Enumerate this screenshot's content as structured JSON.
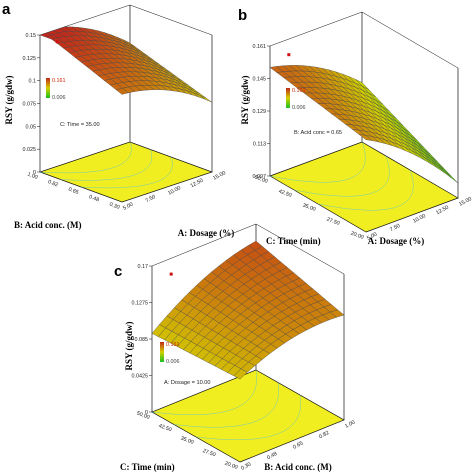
{
  "colors": {
    "surface_high": "#c0281a",
    "surface_mid": "#d4d000",
    "surface_low": "#18c020",
    "floor": "#f0ee20",
    "grid": "#444444",
    "box": "#111111",
    "legend_high": "#cc2200",
    "legend_low": "#444444",
    "contour": "#44bbee"
  },
  "chart_data": [
    {
      "type": "surface",
      "panel": "a",
      "zlabel": "RSY (g/gdw)",
      "xlabel": "A: Dosage (%)",
      "ylabel": "B: Acid conc. (M)",
      "xticks": [
        "5.00",
        "7.50",
        "10.00",
        "12.50",
        "15.00"
      ],
      "yticks": [
        "0.30",
        "0.48",
        "0.65",
        "0.82",
        "1.00"
      ],
      "zticks": [
        "0",
        "0.025",
        "0.05",
        "0.075",
        "0.1",
        "0.125",
        "0.15"
      ],
      "legend": {
        "high": "0.161",
        "low": "0.006"
      },
      "held_constant": "C: Time = 35.00",
      "xlim": [
        5,
        15
      ],
      "ylim": [
        0.3,
        1.0
      ],
      "zlim": [
        0,
        0.15
      ],
      "surface_corners": {
        "x5_ymax": 0.15,
        "x15_ymax": 0.117,
        "x5_ymin": 0.112,
        "x15_ymin": 0.085
      }
    },
    {
      "type": "surface",
      "panel": "b",
      "zlabel": "RSY (g/gdw)",
      "xlabel": "A: Dosage (%)",
      "ylabel": "C: Time (min)",
      "xticks": [
        "5.00",
        "7.50",
        "10.00",
        "12.50",
        "15.00"
      ],
      "yticks": [
        "20.00",
        "27.50",
        "35.00",
        "42.50",
        "50.00"
      ],
      "zticks": [
        "0.097",
        "0.113",
        "0.129",
        "0.145",
        "0.161"
      ],
      "legend": {
        "high": "0.161",
        "low": "0.006"
      },
      "held_constant": "B: Acid conc = 0.65",
      "xlim": [
        5,
        15
      ],
      "ylim": [
        20,
        50
      ],
      "zlim": [
        0.097,
        0.161
      ],
      "surface_corners": {
        "x5_ymax": 0.148,
        "x15_ymax": 0.13,
        "x5_ymin": 0.14,
        "x15_ymin": 0.108
      }
    },
    {
      "type": "surface",
      "panel": "c",
      "zlabel": "RSY (g/gdw)",
      "xlabel": "B: Acid conc. (M)",
      "ylabel": "C: Time (min)",
      "xticks": [
        "0.30",
        "0.48",
        "0.65",
        "0.82",
        "1.00"
      ],
      "yticks": [
        "20.00",
        "27.50",
        "35.00",
        "42.50",
        "50.00"
      ],
      "zticks": [
        "0",
        "0.0425",
        "0.085",
        "0.1275",
        "0.17"
      ],
      "legend": {
        "high": "0.161",
        "low": "0.006"
      },
      "held_constant": "A: Dosage = 10.00",
      "xlim": [
        0.3,
        1.0
      ],
      "ylim": [
        20,
        50
      ],
      "zlim": [
        0,
        0.17
      ],
      "surface_corners": {
        "x5_ymax": 0.085,
        "x15_ymax": 0.16,
        "x5_ymin": 0.09,
        "x15_ymin": 0.132
      }
    }
  ]
}
